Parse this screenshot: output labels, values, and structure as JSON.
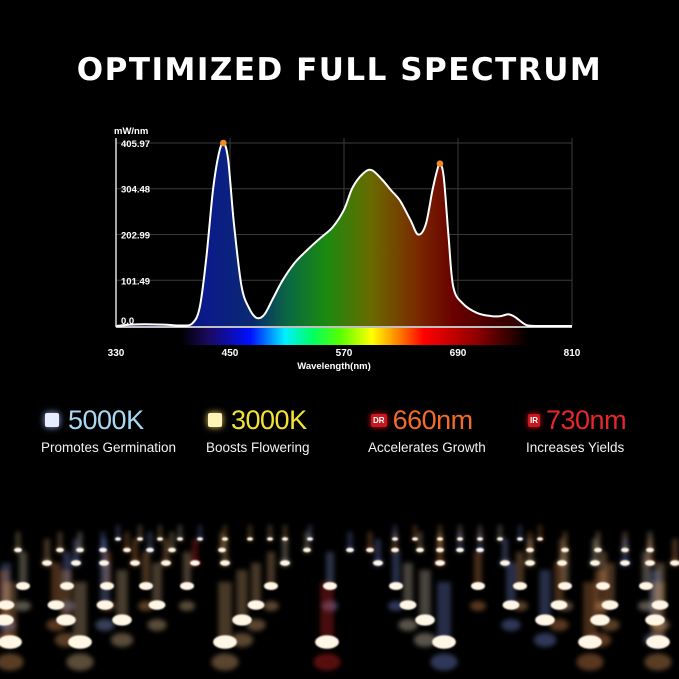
{
  "title": "OPTIMIZED FULL SPECTRUM",
  "chart_data": {
    "type": "area",
    "ylabel": "mW/nm",
    "xlabel": "Wavelength(nm)",
    "xlim": [
      330,
      810
    ],
    "ylim": [
      0,
      405.97
    ],
    "xticks": [
      "330",
      "450",
      "570",
      "690",
      "810"
    ],
    "yticks": [
      "405.97",
      "304.48",
      "202.99",
      "101.49",
      "0.0"
    ],
    "grid": true,
    "x": [
      330,
      345,
      360,
      380,
      400,
      410,
      418,
      425,
      432,
      438,
      443,
      448,
      454,
      462,
      470,
      478,
      486,
      495,
      505,
      518,
      531,
      545,
      558,
      570,
      579,
      590,
      599,
      610,
      620,
      629,
      640,
      648,
      656,
      663,
      668,
      671,
      675,
      680,
      685,
      695,
      710,
      725,
      735,
      743,
      750,
      762,
      775,
      810
    ],
    "y": [
      0,
      3,
      4,
      3,
      1,
      5,
      40,
      150,
      300,
      380,
      406,
      370,
      230,
      90,
      40,
      18,
      25,
      60,
      100,
      140,
      168,
      195,
      219,
      258,
      307,
      338,
      346,
      325,
      300,
      278,
      235,
      203,
      225,
      300,
      345,
      360,
      330,
      200,
      87,
      50,
      29,
      22,
      22,
      26,
      20,
      2,
      0,
      0
    ],
    "peak_markers": [
      {
        "x": 443,
        "y": 405.97
      },
      {
        "x": 671,
        "y": 360
      }
    ],
    "marker_color": "#f08a24",
    "line_color": "#ffffff"
  },
  "legend": [
    {
      "value": "5000K",
      "desc": "Promotes Germination",
      "color": "#a8d8f4",
      "icon": "white-led-square",
      "icon_color": "#e8ecff"
    },
    {
      "value": "3000K",
      "desc": "Boosts Flowering",
      "color": "#f3e235",
      "icon": "warm-led-square",
      "icon_color": "#fff4b8"
    },
    {
      "value": "660nm",
      "desc": "Accelerates Growth",
      "color": "#f26b2a",
      "icon": "dr-badge",
      "badge": "DR"
    },
    {
      "value": "730nm",
      "desc": "Increases Yields",
      "color": "#e8262b",
      "icon": "ir-badge",
      "badge": "IR"
    }
  ]
}
